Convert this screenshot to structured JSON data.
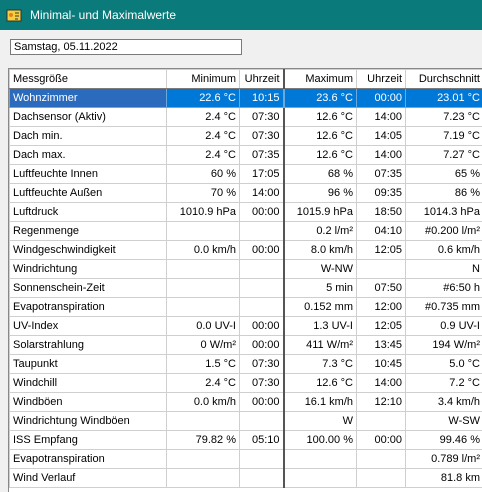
{
  "window": {
    "title": "Minimal- und Maximalwerte"
  },
  "date": "Samstag, 05.11.2022",
  "table": {
    "headers": [
      "Messgröße",
      "Minimum",
      "Uhrzeit",
      "Maximum",
      "Uhrzeit",
      "Durchschnitt"
    ],
    "rows": [
      [
        "Wohnzimmer",
        "22.6 °C",
        "10:15",
        "23.6 °C",
        "00:00",
        "23.01 °C"
      ],
      [
        "Dachsensor (Aktiv)",
        "2.4 °C",
        "07:30",
        "12.6 °C",
        "14:00",
        "7.23 °C"
      ],
      [
        "Dach min.",
        "2.4 °C",
        "07:30",
        "12.6 °C",
        "14:05",
        "7.19 °C"
      ],
      [
        "Dach max.",
        "2.4 °C",
        "07:35",
        "12.6 °C",
        "14:00",
        "7.27 °C"
      ],
      [
        "Luftfeuchte Innen",
        "60 %",
        "17:05",
        "68 %",
        "07:35",
        "65 %"
      ],
      [
        "Luftfeuchte Außen",
        "70 %",
        "14:00",
        "96 %",
        "09:35",
        "86 %"
      ],
      [
        "Luftdruck",
        "1010.9 hPa",
        "00:00",
        "1015.9 hPa",
        "18:50",
        "1014.3 hPa"
      ],
      [
        "Regenmenge",
        "",
        "",
        "0.2 l/m²",
        "04:10",
        "#0.200 l/m²"
      ],
      [
        "Windgeschwindigkeit",
        "0.0 km/h",
        "00:00",
        "8.0 km/h",
        "12:05",
        "0.6 km/h"
      ],
      [
        "Windrichtung",
        "",
        "",
        "W-NW",
        "",
        "N"
      ],
      [
        "Sonnenschein-Zeit",
        "",
        "",
        "5 min",
        "07:50",
        "#6:50 h"
      ],
      [
        "Evapotranspiration",
        "",
        "",
        "0.152 mm",
        "12:00",
        "#0.735 mm"
      ],
      [
        "UV-Index",
        "0.0 UV-I",
        "00:00",
        "1.3 UV-I",
        "12:05",
        "0.9 UV-I"
      ],
      [
        "Solarstrahlung",
        "0 W/m²",
        "00:00",
        "411 W/m²",
        "13:45",
        "194 W/m²"
      ],
      [
        "Taupunkt",
        "1.5 °C",
        "07:30",
        "7.3 °C",
        "10:45",
        "5.0 °C"
      ],
      [
        "Windchill",
        "2.4 °C",
        "07:30",
        "12.6 °C",
        "14:00",
        "7.2 °C"
      ],
      [
        "Windböen",
        "0.0 km/h",
        "00:00",
        "16.1 km/h",
        "12:10",
        "3.4 km/h"
      ],
      [
        "Windrichtung Windböen",
        "",
        "",
        "W",
        "",
        "W-SW"
      ],
      [
        "ISS Empfang",
        "79.82 %",
        "05:10",
        "100.00 %",
        "00:00",
        "99.46 %"
      ],
      [
        "Evapotranspiration",
        "",
        "",
        "",
        "",
        "0.789 l/m²"
      ],
      [
        "Wind Verlauf",
        "",
        "",
        "",
        "",
        "81.8 km"
      ]
    ],
    "selected_row": 0
  },
  "colors": {
    "titlebar": "#0a7a7a",
    "selection": "#0078d7"
  }
}
